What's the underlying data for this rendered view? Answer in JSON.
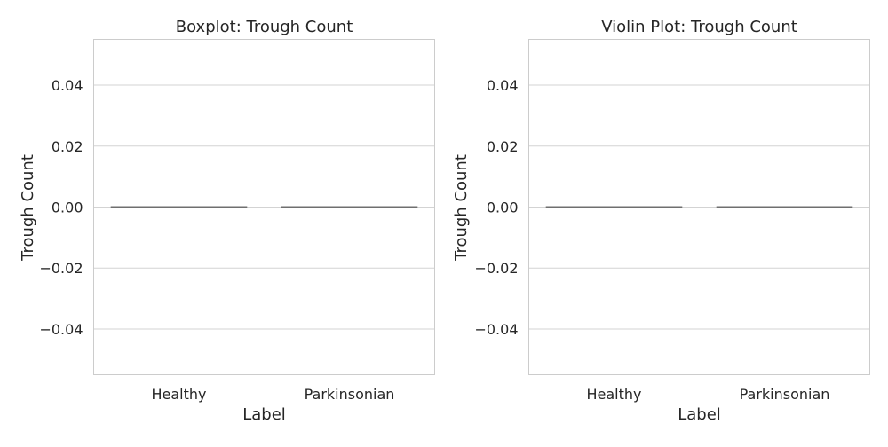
{
  "chart_data": [
    {
      "type": "box",
      "title": "Boxplot: Trough Count",
      "xlabel": "Label",
      "ylabel": "Trough Count",
      "categories": [
        "Healthy",
        "Parkinsonian"
      ],
      "values": [
        0,
        0
      ],
      "ylim": [
        -0.055,
        0.055
      ],
      "yticks": [
        0.04,
        0.02,
        0.0,
        -0.02,
        -0.04
      ],
      "ytick_labels": [
        "0.04",
        "0.02",
        "0.00",
        "−0.02",
        "−0.04"
      ],
      "grid": true,
      "line_color": "#6f6f6f",
      "grid_color": "#d3d3d3"
    },
    {
      "type": "violin",
      "title": "Violin Plot: Trough Count",
      "xlabel": "Label",
      "ylabel": "Trough Count",
      "categories": [
        "Healthy",
        "Parkinsonian"
      ],
      "values": [
        0,
        0
      ],
      "ylim": [
        -0.055,
        0.055
      ],
      "yticks": [
        0.04,
        0.02,
        0.0,
        -0.02,
        -0.04
      ],
      "ytick_labels": [
        "0.04",
        "0.02",
        "0.00",
        "−0.02",
        "−0.04"
      ],
      "grid": true,
      "line_color": "#6f6f6f",
      "grid_color": "#d3d3d3"
    }
  ]
}
